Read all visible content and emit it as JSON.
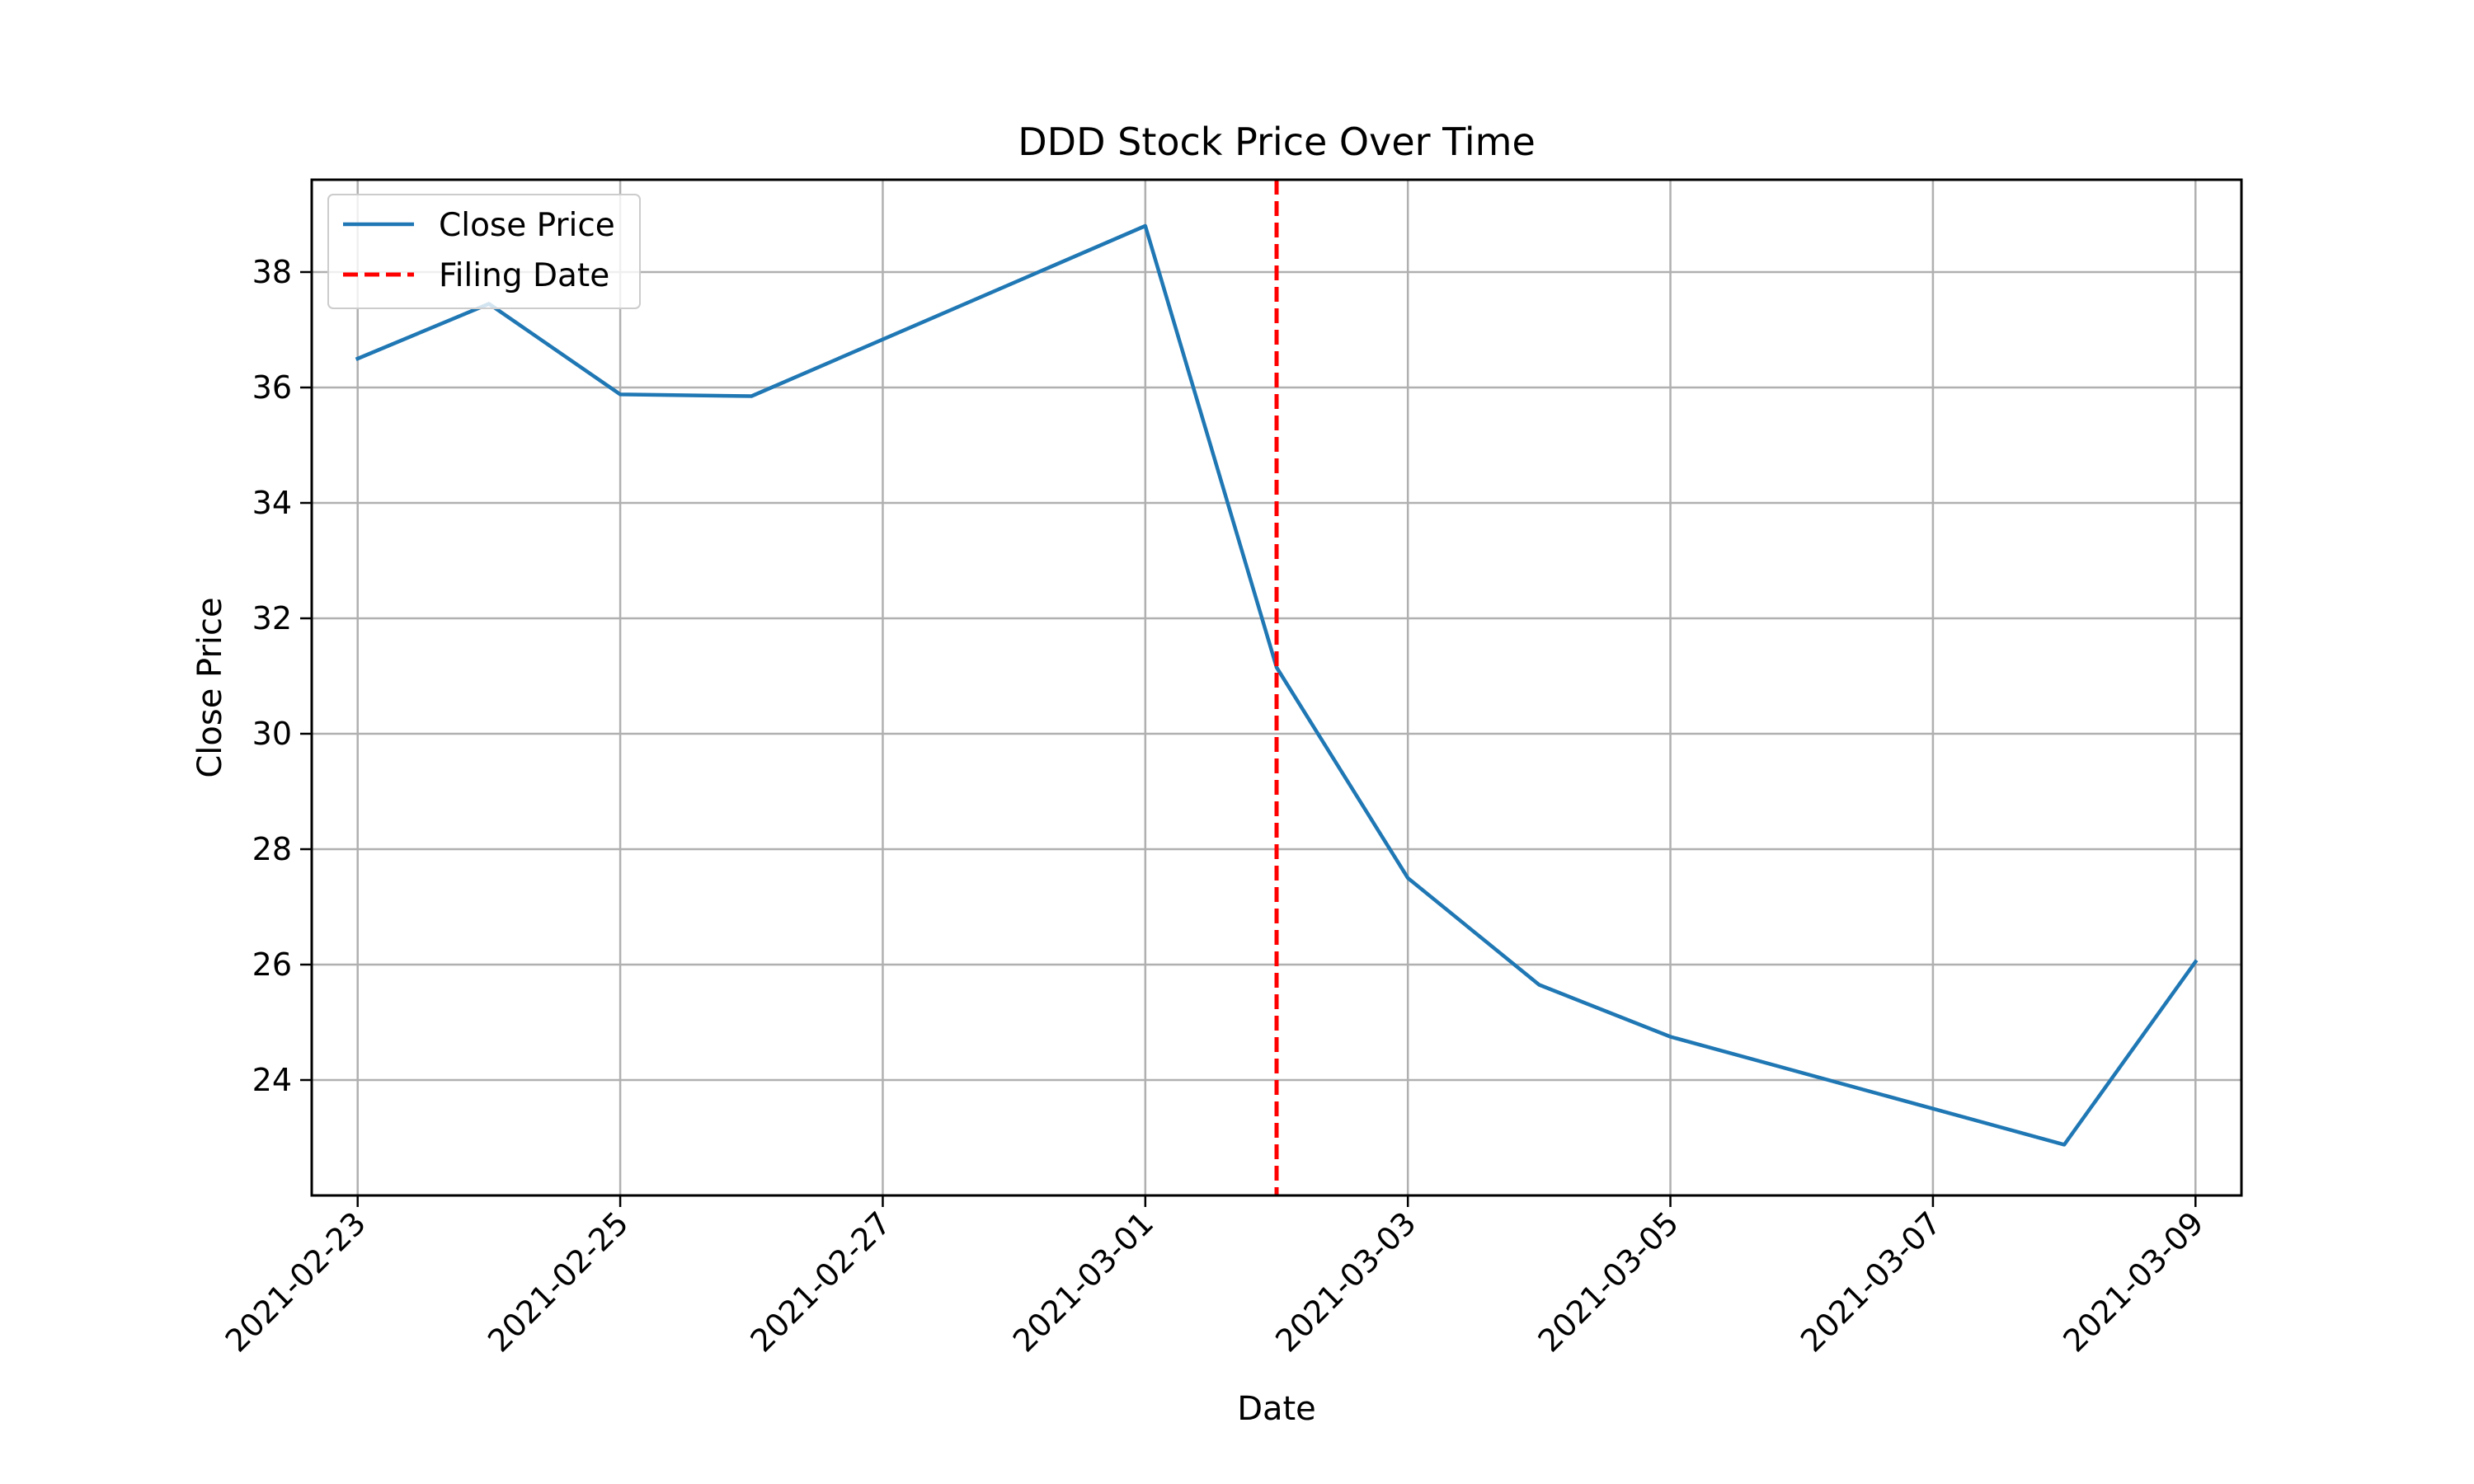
{
  "chart_data": {
    "type": "line",
    "title": "DDD Stock Price Over Time",
    "xlabel": "Date",
    "ylabel": "Close Price",
    "x_range": [
      "2021-02-22",
      "2021-03-09"
    ],
    "ylim": [
      22.0,
      39.6
    ],
    "x_ticks": [
      "2021-02-23",
      "2021-02-25",
      "2021-02-27",
      "2021-03-01",
      "2021-03-03",
      "2021-03-05",
      "2021-03-07",
      "2021-03-09"
    ],
    "y_ticks": [
      24,
      26,
      28,
      30,
      32,
      34,
      36,
      38
    ],
    "grid": true,
    "legend_position": "upper left",
    "series": [
      {
        "name": "Close Price",
        "color": "#1f77b4",
        "style": "solid",
        "points": [
          {
            "x": "2021-02-23",
            "y": 36.5
          },
          {
            "x": "2021-02-24",
            "y": 37.45
          },
          {
            "x": "2021-02-25",
            "y": 35.88
          },
          {
            "x": "2021-02-26",
            "y": 35.85
          },
          {
            "x": "2021-03-01",
            "y": 38.8
          },
          {
            "x": "2021-03-02",
            "y": 31.15
          },
          {
            "x": "2021-03-03",
            "y": 27.5
          },
          {
            "x": "2021-03-04",
            "y": 25.65
          },
          {
            "x": "2021-03-05",
            "y": 24.75
          },
          {
            "x": "2021-03-08",
            "y": 22.88
          },
          {
            "x": "2021-03-09",
            "y": 26.05
          }
        ]
      }
    ],
    "vertical_lines": [
      {
        "name": "Filing Date",
        "x": "2021-03-02",
        "color": "#ff0000",
        "style": "dashed"
      }
    ]
  }
}
